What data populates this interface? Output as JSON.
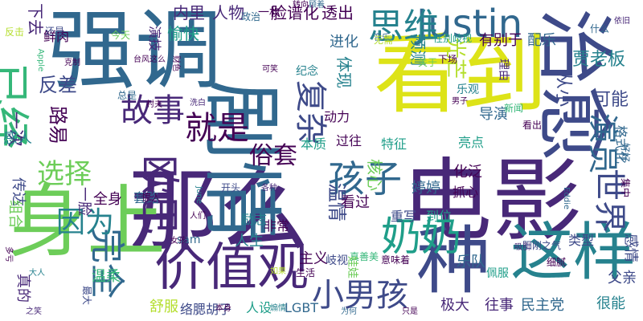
{
  "colors": {
    "background": "#ffffff",
    "palette": [
      "#440154",
      "#482878",
      "#3E4A89",
      "#31688E",
      "#26828E",
      "#1F9E89",
      "#35B779",
      "#6DCD59",
      "#B4DE2C",
      "#DDE318"
    ]
  },
  "words": [
    {
      "text": "看到",
      "color": "#DDE318"
    },
    {
      "text": "电影",
      "color": "#482878"
    },
    {
      "text": "强调",
      "color": "#31688E"
    },
    {
      "text": "那么",
      "color": "#482878"
    },
    {
      "text": "身上",
      "color": "#6DCD59"
    },
    {
      "text": "剧情",
      "color": "#31688E"
    },
    {
      "text": "价值观",
      "color": "#482878"
    },
    {
      "text": "种",
      "color": "#3E4A89"
    },
    {
      "text": "这样",
      "color": "#26828E"
    },
    {
      "text": "治愈",
      "color": "#3E4A89"
    },
    {
      "text": "Justin",
      "color": "#31688E"
    },
    {
      "text": "已经",
      "color": "#35B779"
    },
    {
      "text": "欧巴",
      "color": "#482878"
    },
    {
      "text": "孩子",
      "color": "#31688E"
    },
    {
      "text": "奶奶",
      "color": "#1F9E89"
    },
    {
      "text": "小男孩",
      "color": "#3E4A89"
    },
    {
      "text": "就是",
      "color": "#440154"
    },
    {
      "text": "故事",
      "color": "#482878"
    },
    {
      "text": "思维",
      "color": "#26828E"
    },
    {
      "text": "复杂",
      "color": "#3E4A89"
    },
    {
      "text": "演员",
      "color": "#31688E"
    },
    {
      "text": "世界",
      "color": "#3E4A89"
    },
    {
      "text": "完全",
      "color": "#31688E"
    },
    {
      "text": "选择",
      "color": "#6DCD59"
    },
    {
      "text": "因为",
      "color": "#26828E"
    },
    {
      "text": "俗套",
      "color": "#440154"
    },
    {
      "text": "温情",
      "color": "#3E4A89"
    },
    {
      "text": "一次",
      "color": "#482878"
    },
    {
      "text": "下去",
      "color": "#482878"
    },
    {
      "text": "内里",
      "color": "#482878"
    },
    {
      "text": "人物",
      "color": "#482878"
    },
    {
      "text": "一枚",
      "color": "#440154"
    },
    {
      "text": "脸谱化",
      "color": "#440154"
    },
    {
      "text": "透出",
      "color": "#440154"
    },
    {
      "text": "体现",
      "color": "#26828E"
    },
    {
      "text": "贾老板",
      "color": "#26828E"
    },
    {
      "text": "可能",
      "color": "#3E4A89"
    },
    {
      "text": "光芒",
      "color": "#B4DE2C"
    },
    {
      "text": "愉快",
      "color": "#1F9E89"
    },
    {
      "text": "预测",
      "color": "#26828E"
    },
    {
      "text": "进化",
      "color": "#31688E"
    },
    {
      "text": "有别于",
      "color": "#440154"
    },
    {
      "text": "配乐",
      "color": "#31688E"
    },
    {
      "text": "从小",
      "color": "#3E4A89"
    },
    {
      "text": "导演",
      "color": "#31688E"
    },
    {
      "text": "反差",
      "color": "#3E4A89"
    },
    {
      "text": "路易",
      "color": "#440154"
    },
    {
      "text": "感人",
      "color": "#26828E"
    },
    {
      "text": "传达",
      "color": "#3E4A89"
    },
    {
      "text": "一脸",
      "color": "#482878"
    },
    {
      "text": "组合",
      "color": "#6DCD59"
    },
    {
      "text": "全身",
      "color": "#440154"
    },
    {
      "text": "套路",
      "color": "#31688E"
    },
    {
      "text": "人生",
      "color": "#26828E"
    },
    {
      "text": "看过",
      "color": "#440154"
    },
    {
      "text": "婷婷",
      "color": "#31688E"
    },
    {
      "text": "化泛",
      "color": "#440154"
    },
    {
      "text": "主义",
      "color": "#440154"
    },
    {
      "text": "岐视",
      "color": "#3E4A89"
    },
    {
      "text": "LGBT",
      "color": "#31688E"
    },
    {
      "text": "极大",
      "color": "#482878"
    },
    {
      "text": "往事",
      "color": "#482878"
    },
    {
      "text": "民主党",
      "color": "#31688E"
    },
    {
      "text": "很能",
      "color": "#26828E"
    },
    {
      "text": "父亲",
      "color": "#3E4A89"
    },
    {
      "text": "乐队",
      "color": "#31688E"
    },
    {
      "text": "非常",
      "color": "#440154"
    },
    {
      "text": "励志",
      "color": "#26828E"
    },
    {
      "text": "温柔",
      "color": "#35B779"
    },
    {
      "text": "舒服",
      "color": "#B4DE2C"
    },
    {
      "text": "络腮胡子",
      "color": "#3E4A89"
    },
    {
      "text": "人设",
      "color": "#1F9E89"
    },
    {
      "text": "真的",
      "color": "#482878"
    },
    {
      "text": "本质",
      "color": "#1F9E89"
    },
    {
      "text": "特征",
      "color": "#1F9E89"
    },
    {
      "text": "亮点",
      "color": "#1F9E89"
    },
    {
      "text": "抓心",
      "color": "#440154"
    },
    {
      "text": "重写",
      "color": "#3E4A89"
    },
    {
      "text": "到位",
      "color": "#1F9E89"
    },
    {
      "text": "核心",
      "color": "#6DCD59"
    },
    {
      "text": "过往",
      "color": "#440154"
    },
    {
      "text": "动力",
      "color": "#440154"
    },
    {
      "text": "类型",
      "color": "#3E4A89"
    },
    {
      "text": "感情",
      "color": "#3E4A89"
    },
    {
      "text": "鲜肉",
      "color": "#440154"
    },
    {
      "text": "演技",
      "color": "#482878"
    },
    {
      "text": "下场",
      "color": "#440154"
    },
    {
      "text": "男子",
      "color": "#440154"
    },
    {
      "text": "新闻",
      "color": "#35B779"
    },
    {
      "text": "乐观",
      "color": "#26828E"
    },
    {
      "text": "理由",
      "color": "#482878"
    },
    {
      "text": "性别歧视",
      "color": "#1F9E89"
    },
    {
      "text": "音乐",
      "color": "#31688E"
    },
    {
      "text": "无需",
      "color": "#B4DE2C"
    },
    {
      "text": "今天",
      "color": "#6DCD59"
    },
    {
      "text": "还是",
      "color": "#3E4A89"
    },
    {
      "text": "Apple",
      "color": "#35B779"
    },
    {
      "text": "总是",
      "color": "#31688E"
    },
    {
      "text": "洗白",
      "color": "#482878"
    },
    {
      "text": "村夫",
      "color": "#440154"
    },
    {
      "text": "纪念",
      "color": "#26828E"
    },
    {
      "text": "可笑",
      "color": "#440154"
    },
    {
      "text": "June",
      "color": "#26828E"
    },
    {
      "text": "sam",
      "color": "#31688E"
    },
    {
      "text": "Eddie",
      "color": "#31688E"
    },
    {
      "text": "人们",
      "color": "#440154"
    },
    {
      "text": "开头",
      "color": "#3E4A89"
    },
    {
      "text": "各种",
      "color": "#482878"
    },
    {
      "text": "惊人",
      "color": "#440154"
    },
    {
      "text": "女孩",
      "color": "#440154"
    },
    {
      "text": "阳刚之气",
      "color": "#3E4A89"
    },
    {
      "text": "细腻",
      "color": "#440154"
    },
    {
      "text": "吸引",
      "color": "#482878"
    },
    {
      "text": "真善美",
      "color": "#35B779"
    },
    {
      "text": "生活",
      "color": "#440154"
    },
    {
      "text": "娃娃",
      "color": "#6DCD59"
    },
    {
      "text": "意味着",
      "color": "#440154"
    },
    {
      "text": "佩服",
      "color": "#1F9E89"
    },
    {
      "text": "为何",
      "color": "#31688E"
    },
    {
      "text": "本身",
      "color": "#440154"
    },
    {
      "text": "煽情",
      "color": "#26828E"
    },
    {
      "text": "只是",
      "color": "#440154"
    },
    {
      "text": "如果",
      "color": "#B4DE2C"
    },
    {
      "text": "大人",
      "color": "#26828E"
    },
    {
      "text": "之笑",
      "color": "#482878"
    },
    {
      "text": "多亏",
      "color": "#440154"
    },
    {
      "text": "最大",
      "color": "#3E4A89"
    },
    {
      "text": "依旧",
      "color": "#482878"
    },
    {
      "text": "什么",
      "color": "#31688E"
    },
    {
      "text": "格式化",
      "color": "#31688E"
    },
    {
      "text": "好好",
      "color": "#31688E"
    },
    {
      "text": "集中",
      "color": "#440154"
    },
    {
      "text": "关于",
      "color": "#6DCD59"
    },
    {
      "text": "看出",
      "color": "#440154"
    },
    {
      "text": "政治",
      "color": "#31688E"
    },
    {
      "text": "转向",
      "color": "#440154"
    },
    {
      "text": "顾着",
      "color": "#31688E"
    },
    {
      "text": "台风这么",
      "color": "#440154"
    },
    {
      "text": "财色",
      "color": "#440154"
    },
    {
      "text": "反击",
      "color": "#B4DE2C"
    },
    {
      "text": "克制",
      "color": "#440154"
    }
  ]
}
